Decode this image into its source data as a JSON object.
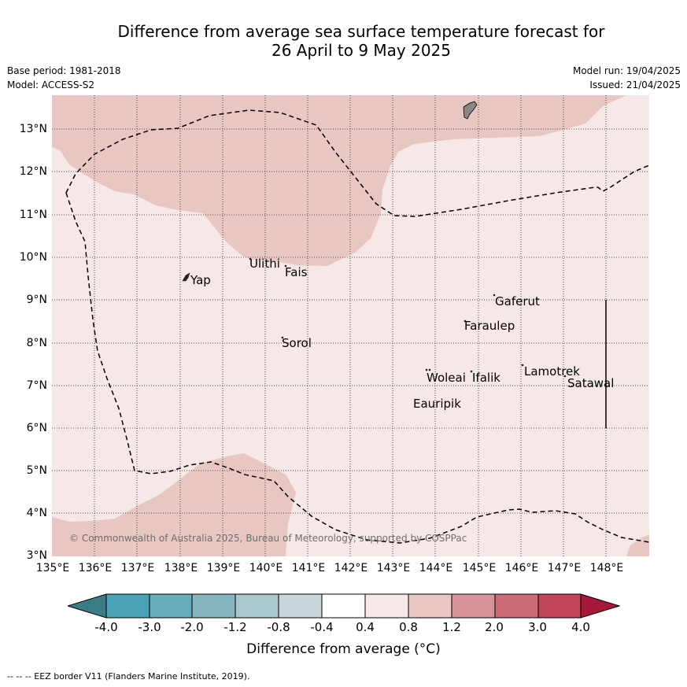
{
  "header": {
    "title_line1": "Difference from average sea surface temperature forecast for",
    "title_line2": "26 April to 9 May 2025",
    "base_period": "Base period: 1981-2018",
    "model": "Model: ACCESS-S2",
    "model_run": "Model run: 19/04/2025",
    "issued": "Issued: 21/04/2025"
  },
  "map": {
    "lat_labels": [
      "3°N",
      "4°N",
      "5°N",
      "6°N",
      "7°N",
      "8°N",
      "9°N",
      "10°N",
      "11°N",
      "12°N",
      "13°N"
    ],
    "lon_labels": [
      "135°E",
      "136°E",
      "137°E",
      "138°E",
      "139°E",
      "140°E",
      "141°E",
      "142°E",
      "143°E",
      "144°E",
      "145°E",
      "146°E",
      "147°E",
      "148°E"
    ],
    "islands": [
      {
        "name": "Yap"
      },
      {
        "name": "Ulithi"
      },
      {
        "name": "Fais"
      },
      {
        "name": "Gaferut"
      },
      {
        "name": "Faraulep"
      },
      {
        "name": "Sorol"
      },
      {
        "name": "Lamotrek"
      },
      {
        "name": "Woleai"
      },
      {
        "name": "Ifalik"
      },
      {
        "name": "Satawal"
      },
      {
        "name": "Eauripik"
      }
    ],
    "copyright": "© Commonwealth of Australia 2025, Bureau of Meteorology, supported by COSPPac",
    "colors": {
      "band_0.4_0.8": "#f5e8e6",
      "band_0.8_1.2": "#e8c6c1",
      "land": "#888888"
    }
  },
  "colorbar": {
    "ticks": [
      "-4.0",
      "-3.0",
      "-2.0",
      "-1.2",
      "-0.8",
      "-0.4",
      "0.4",
      "0.8",
      "1.2",
      "2.0",
      "3.0",
      "4.0"
    ],
    "colors": [
      "#3a7d87",
      "#4aa3b4",
      "#68adbb",
      "#87b6c1",
      "#a9c8cd",
      "#c8d6da",
      "#ffffff",
      "#f5e8e6",
      "#e8c6c1",
      "#d6949a",
      "#cc6b76",
      "#bf4557",
      "#a7193a"
    ],
    "label": "Difference from average (°C)"
  },
  "footnote": "--  --  -- EEZ border V11 (Flanders Marine Institute, 2019)."
}
